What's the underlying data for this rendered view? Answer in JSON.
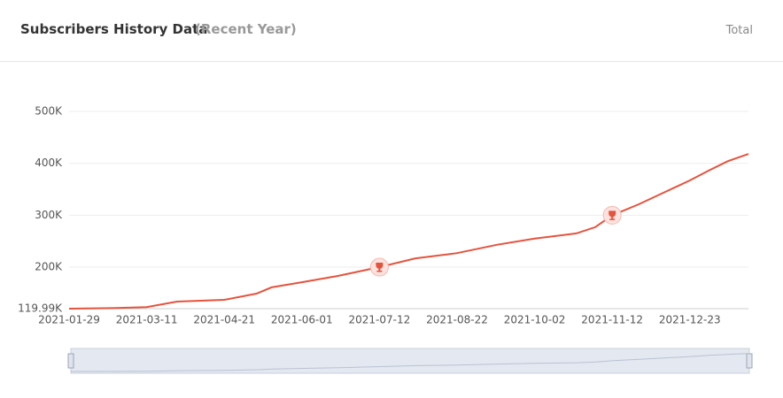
{
  "chart_data": {
    "type": "line",
    "title": "Subscribers History Data",
    "subtitle": "(Recent Year)",
    "control": "Total",
    "x": [
      "2021-01-29",
      "2021-02-20",
      "2021-03-11",
      "2021-03-27",
      "2021-04-21",
      "2021-05-08",
      "2021-05-16",
      "2021-06-01",
      "2021-06-20",
      "2021-07-12",
      "2021-07-31",
      "2021-08-22",
      "2021-09-12",
      "2021-10-02",
      "2021-10-24",
      "2021-11-03",
      "2021-11-12",
      "2021-11-26",
      "2021-12-10",
      "2021-12-23",
      "2022-01-02",
      "2022-01-12",
      "2022-01-23"
    ],
    "series": [
      {
        "name": "Subscribers",
        "color": "#e5533d",
        "values": [
          120000,
          121000,
          123000,
          133600,
          137000,
          149000,
          161000,
          171000,
          183000,
          200000,
          217000,
          227000,
          243000,
          255000,
          265000,
          277000,
          300000,
          321000,
          345000,
          367000,
          386000,
          404000,
          418000
        ]
      }
    ],
    "xlim": [
      "2021-01-29",
      "2022-01-23"
    ],
    "xticks": [
      "2021-01-29",
      "2021-03-11",
      "2021-04-21",
      "2021-06-01",
      "2021-07-12",
      "2021-08-22",
      "2021-10-02",
      "2021-11-12",
      "2021-12-23"
    ],
    "ylim": [
      119990,
      500000
    ],
    "yticks": [
      {
        "value": 119990,
        "label": "119.99K"
      },
      {
        "value": 200000,
        "label": "200K"
      },
      {
        "value": 300000,
        "label": "300K"
      },
      {
        "value": 400000,
        "label": "400K"
      },
      {
        "value": 500000,
        "label": "500K"
      }
    ],
    "grid": true,
    "milestones": [
      9,
      16
    ]
  }
}
